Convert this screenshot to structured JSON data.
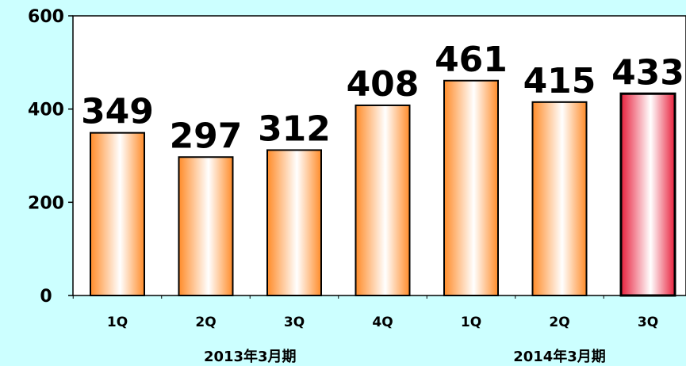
{
  "chart_data": {
    "type": "bar",
    "categories": [
      "1Q",
      "2Q",
      "3Q",
      "4Q",
      "1Q",
      "2Q",
      "3Q"
    ],
    "groups": [
      {
        "label": "2013年3月期",
        "span": [
          0,
          3
        ]
      },
      {
        "label": "2014年3月期",
        "span": [
          4,
          6
        ]
      }
    ],
    "values": [
      349,
      297,
      312,
      408,
      461,
      415,
      433
    ],
    "data_labels": [
      "349",
      "297",
      "312",
      "408",
      "461",
      "415",
      "433"
    ],
    "highlight_index": 6,
    "ylim": [
      0,
      600
    ],
    "yticks": [
      0,
      200,
      400,
      600
    ],
    "ytick_labels": [
      "0",
      "200",
      "400",
      "600"
    ],
    "title": "",
    "xlabel": "",
    "ylabel": "",
    "grid": false,
    "colors": {
      "background": "#ccffff",
      "plot_area": "#ffffff",
      "bar_edge": "#ff8c2a",
      "bar_center": "#ffffff",
      "highlight_edge": "#e8203c",
      "highlight_center": "#ffffff"
    }
  }
}
